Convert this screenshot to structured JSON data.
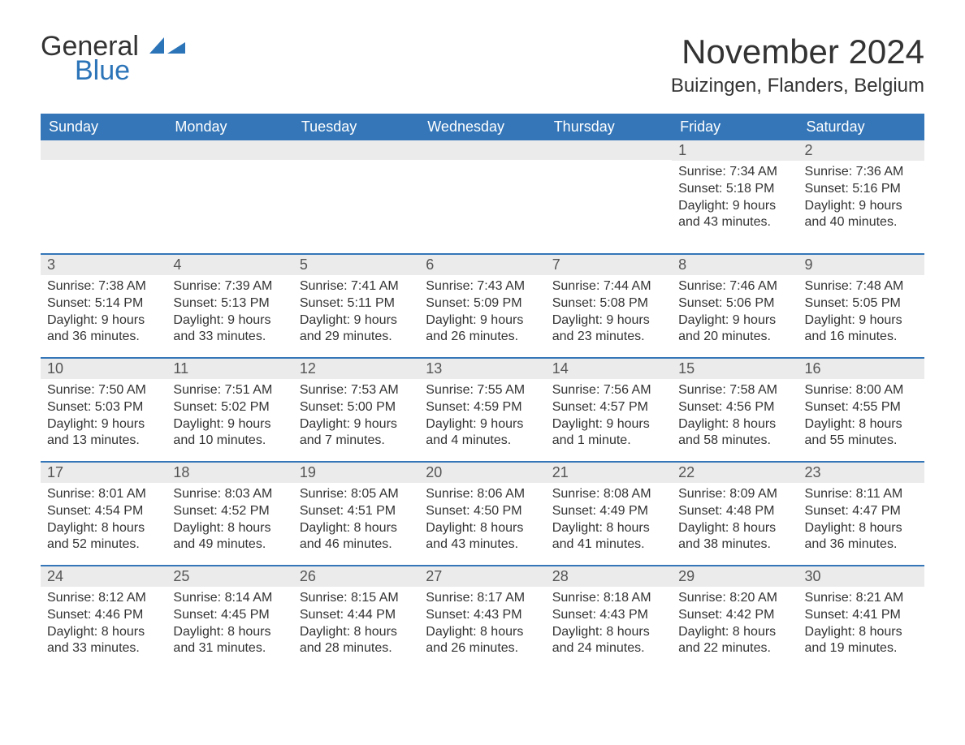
{
  "logo": {
    "text1": "General",
    "text2": "Blue",
    "icon_color": "#2c74b8"
  },
  "title": "November 2024",
  "location": "Buizingen, Flanders, Belgium",
  "colors": {
    "header_bg": "#3476b8",
    "header_text": "#ffffff",
    "daynum_bg": "#ebebeb",
    "daynum_text": "#555555",
    "body_text": "#333333",
    "row_border": "#3476b8",
    "page_bg": "#ffffff"
  },
  "day_headers": [
    "Sunday",
    "Monday",
    "Tuesday",
    "Wednesday",
    "Thursday",
    "Friday",
    "Saturday"
  ],
  "weeks": [
    [
      null,
      null,
      null,
      null,
      null,
      {
        "n": "1",
        "sunrise": "Sunrise: 7:34 AM",
        "sunset": "Sunset: 5:18 PM",
        "daylight": "Daylight: 9 hours and 43 minutes."
      },
      {
        "n": "2",
        "sunrise": "Sunrise: 7:36 AM",
        "sunset": "Sunset: 5:16 PM",
        "daylight": "Daylight: 9 hours and 40 minutes."
      }
    ],
    [
      {
        "n": "3",
        "sunrise": "Sunrise: 7:38 AM",
        "sunset": "Sunset: 5:14 PM",
        "daylight": "Daylight: 9 hours and 36 minutes."
      },
      {
        "n": "4",
        "sunrise": "Sunrise: 7:39 AM",
        "sunset": "Sunset: 5:13 PM",
        "daylight": "Daylight: 9 hours and 33 minutes."
      },
      {
        "n": "5",
        "sunrise": "Sunrise: 7:41 AM",
        "sunset": "Sunset: 5:11 PM",
        "daylight": "Daylight: 9 hours and 29 minutes."
      },
      {
        "n": "6",
        "sunrise": "Sunrise: 7:43 AM",
        "sunset": "Sunset: 5:09 PM",
        "daylight": "Daylight: 9 hours and 26 minutes."
      },
      {
        "n": "7",
        "sunrise": "Sunrise: 7:44 AM",
        "sunset": "Sunset: 5:08 PM",
        "daylight": "Daylight: 9 hours and 23 minutes."
      },
      {
        "n": "8",
        "sunrise": "Sunrise: 7:46 AM",
        "sunset": "Sunset: 5:06 PM",
        "daylight": "Daylight: 9 hours and 20 minutes."
      },
      {
        "n": "9",
        "sunrise": "Sunrise: 7:48 AM",
        "sunset": "Sunset: 5:05 PM",
        "daylight": "Daylight: 9 hours and 16 minutes."
      }
    ],
    [
      {
        "n": "10",
        "sunrise": "Sunrise: 7:50 AM",
        "sunset": "Sunset: 5:03 PM",
        "daylight": "Daylight: 9 hours and 13 minutes."
      },
      {
        "n": "11",
        "sunrise": "Sunrise: 7:51 AM",
        "sunset": "Sunset: 5:02 PM",
        "daylight": "Daylight: 9 hours and 10 minutes."
      },
      {
        "n": "12",
        "sunrise": "Sunrise: 7:53 AM",
        "sunset": "Sunset: 5:00 PM",
        "daylight": "Daylight: 9 hours and 7 minutes."
      },
      {
        "n": "13",
        "sunrise": "Sunrise: 7:55 AM",
        "sunset": "Sunset: 4:59 PM",
        "daylight": "Daylight: 9 hours and 4 minutes."
      },
      {
        "n": "14",
        "sunrise": "Sunrise: 7:56 AM",
        "sunset": "Sunset: 4:57 PM",
        "daylight": "Daylight: 9 hours and 1 minute."
      },
      {
        "n": "15",
        "sunrise": "Sunrise: 7:58 AM",
        "sunset": "Sunset: 4:56 PM",
        "daylight": "Daylight: 8 hours and 58 minutes."
      },
      {
        "n": "16",
        "sunrise": "Sunrise: 8:00 AM",
        "sunset": "Sunset: 4:55 PM",
        "daylight": "Daylight: 8 hours and 55 minutes."
      }
    ],
    [
      {
        "n": "17",
        "sunrise": "Sunrise: 8:01 AM",
        "sunset": "Sunset: 4:54 PM",
        "daylight": "Daylight: 8 hours and 52 minutes."
      },
      {
        "n": "18",
        "sunrise": "Sunrise: 8:03 AM",
        "sunset": "Sunset: 4:52 PM",
        "daylight": "Daylight: 8 hours and 49 minutes."
      },
      {
        "n": "19",
        "sunrise": "Sunrise: 8:05 AM",
        "sunset": "Sunset: 4:51 PM",
        "daylight": "Daylight: 8 hours and 46 minutes."
      },
      {
        "n": "20",
        "sunrise": "Sunrise: 8:06 AM",
        "sunset": "Sunset: 4:50 PM",
        "daylight": "Daylight: 8 hours and 43 minutes."
      },
      {
        "n": "21",
        "sunrise": "Sunrise: 8:08 AM",
        "sunset": "Sunset: 4:49 PM",
        "daylight": "Daylight: 8 hours and 41 minutes."
      },
      {
        "n": "22",
        "sunrise": "Sunrise: 8:09 AM",
        "sunset": "Sunset: 4:48 PM",
        "daylight": "Daylight: 8 hours and 38 minutes."
      },
      {
        "n": "23",
        "sunrise": "Sunrise: 8:11 AM",
        "sunset": "Sunset: 4:47 PM",
        "daylight": "Daylight: 8 hours and 36 minutes."
      }
    ],
    [
      {
        "n": "24",
        "sunrise": "Sunrise: 8:12 AM",
        "sunset": "Sunset: 4:46 PM",
        "daylight": "Daylight: 8 hours and 33 minutes."
      },
      {
        "n": "25",
        "sunrise": "Sunrise: 8:14 AM",
        "sunset": "Sunset: 4:45 PM",
        "daylight": "Daylight: 8 hours and 31 minutes."
      },
      {
        "n": "26",
        "sunrise": "Sunrise: 8:15 AM",
        "sunset": "Sunset: 4:44 PM",
        "daylight": "Daylight: 8 hours and 28 minutes."
      },
      {
        "n": "27",
        "sunrise": "Sunrise: 8:17 AM",
        "sunset": "Sunset: 4:43 PM",
        "daylight": "Daylight: 8 hours and 26 minutes."
      },
      {
        "n": "28",
        "sunrise": "Sunrise: 8:18 AM",
        "sunset": "Sunset: 4:43 PM",
        "daylight": "Daylight: 8 hours and 24 minutes."
      },
      {
        "n": "29",
        "sunrise": "Sunrise: 8:20 AM",
        "sunset": "Sunset: 4:42 PM",
        "daylight": "Daylight: 8 hours and 22 minutes."
      },
      {
        "n": "30",
        "sunrise": "Sunrise: 8:21 AM",
        "sunset": "Sunset: 4:41 PM",
        "daylight": "Daylight: 8 hours and 19 minutes."
      }
    ]
  ]
}
